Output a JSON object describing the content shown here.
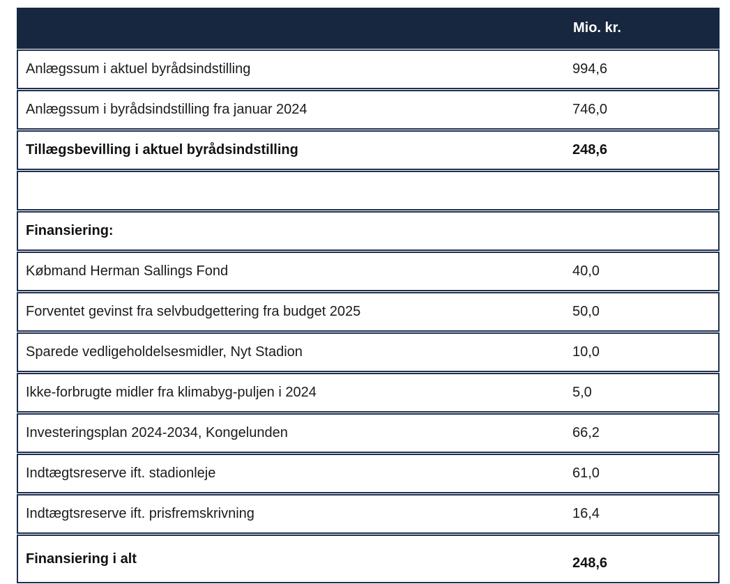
{
  "document": {
    "type": "financial-table",
    "language": "da"
  },
  "colors": {
    "header_background": "#17273F",
    "header_text": "#ffffff",
    "border": "#1d2f4d",
    "body_text": "#1b1b1b",
    "page_background": "#ffffff"
  },
  "table": {
    "header": {
      "label": "",
      "value_label": "Mio. kr."
    },
    "rows": [
      {
        "label": "Anlægssum i aktuel byrådsindstilling",
        "value": "994,6",
        "bold": false
      },
      {
        "label": "Anlægssum i byrådsindstilling fra januar 2024",
        "value": "746,0",
        "bold": false
      },
      {
        "label": "Tillægsbevilling i aktuel byrådsindstilling",
        "value": "248,6",
        "bold": true
      },
      {
        "label": "",
        "value": "",
        "bold": false
      },
      {
        "label": "Finansiering:",
        "value": "",
        "bold": true
      },
      {
        "label": "Købmand Herman Sallings Fond",
        "value": "40,0",
        "bold": false
      },
      {
        "label": "Forventet gevinst fra selvbudgettering fra budget 2025",
        "value": "50,0",
        "bold": false
      },
      {
        "label": "Sparede vedligeholdelsesmidler, Nyt Stadion",
        "value": "10,0",
        "bold": false
      },
      {
        "label": "Ikke-forbrugte midler fra klimabyg-puljen i 2024",
        "value": "5,0",
        "bold": false
      },
      {
        "label": "Investeringsplan 2024-2034, Kongelunden",
        "value": "66,2",
        "bold": false
      },
      {
        "label": "Indtægtsreserve ift. stadionleje",
        "value": "61,0",
        "bold": false
      },
      {
        "label": "Indtægtsreserve ift. prisfremskrivning",
        "value": "16,4",
        "bold": false
      },
      {
        "label": "Finansiering i alt",
        "value": "248,6",
        "bold": true
      }
    ]
  }
}
